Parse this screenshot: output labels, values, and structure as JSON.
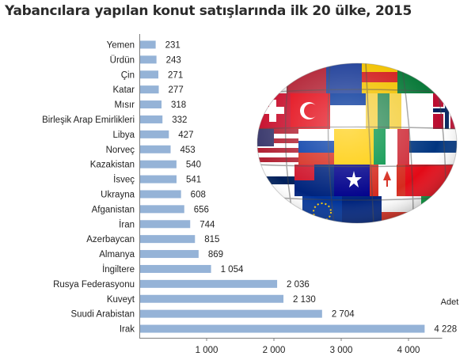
{
  "title": "Yabancılara yapılan konut satışlarında ilk 20 ülke, 2015",
  "chart_data": {
    "type": "bar",
    "orientation": "horizontal",
    "unit": "Adet",
    "categories": [
      "Yemen",
      "Ürdün",
      "Çin",
      "Katar",
      "Mısır",
      "Birleşik Arap Emirlikleri",
      "Libya",
      "Norveç",
      "Kazakistan",
      "İsveç",
      "Ukrayna",
      "Afganistan",
      "İran",
      "Azerbaycan",
      "Almanya",
      "İngiltere",
      "Rusya Federasyonu",
      "Kuveyt",
      "Suudi Arabistan",
      "Irak"
    ],
    "values": [
      231,
      243,
      271,
      277,
      318,
      332,
      427,
      453,
      540,
      541,
      608,
      656,
      744,
      815,
      869,
      1054,
      2036,
      2130,
      2704,
      4228
    ],
    "value_labels": [
      "231",
      "243",
      "271",
      "277",
      "318",
      "332",
      "427",
      "453",
      "540",
      "541",
      "608",
      "656",
      "744",
      "815",
      "869",
      "1 054",
      "2 036",
      "2 130",
      "2 704",
      "4 228"
    ],
    "xlim": [
      0,
      4500
    ],
    "xticks": [
      1000,
      2000,
      3000,
      4000
    ],
    "xtick_labels": [
      "1 000",
      "2 000",
      "3 000",
      "4 000"
    ],
    "bar_color": "#95b3d7",
    "grid": false
  },
  "decoration": {
    "name": "flag-globe-image"
  }
}
